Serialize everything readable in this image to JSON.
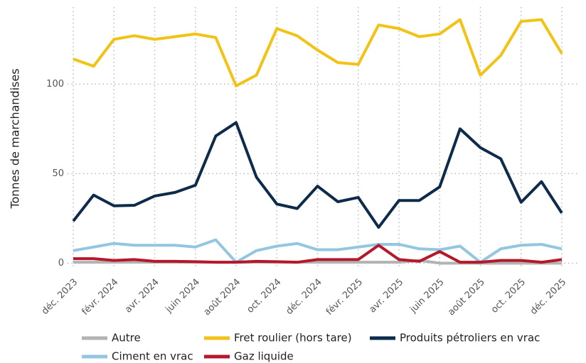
{
  "chart_data": {
    "type": "line",
    "y_label": "Tonnes de marchandises",
    "categories": [
      "déc. 2023",
      null,
      "févr. 2024",
      null,
      "avr. 2024",
      null,
      "juin 2024",
      null,
      "août 2024",
      null,
      "oct. 2024",
      null,
      "déc. 2024",
      null,
      "févr. 2025",
      null,
      "avr. 2025",
      null,
      "juin 2025",
      null,
      "août 2025",
      null,
      "oct. 2025",
      null,
      "déc. 2025"
    ],
    "series": [
      {
        "name": "Autre",
        "color": "#b3b3b3",
        "values": [
          0.5,
          0.5,
          0.5,
          0.5,
          0.5,
          0.5,
          0.5,
          0.5,
          0.5,
          0.5,
          0.5,
          0.5,
          0.5,
          0.5,
          0.5,
          0.5,
          0.5,
          1.5,
          0,
          0,
          0,
          0,
          0,
          0,
          0
        ]
      },
      {
        "name": "Ciment en vrac",
        "color": "#93c6e0",
        "values": [
          7,
          9,
          11,
          10,
          10,
          10,
          9,
          13,
          0.5,
          7,
          9.5,
          11,
          7.5,
          7.5,
          9,
          10.5,
          10.5,
          8,
          7.5,
          9.5,
          0.5,
          8,
          10,
          10.5,
          8
        ]
      },
      {
        "name": "Fret roulier (hors tare)",
        "color": "#f2c314",
        "values": [
          114,
          110,
          125,
          127,
          125,
          126.5,
          128,
          126,
          99,
          105,
          131,
          127,
          119,
          112,
          111,
          133,
          131,
          126.5,
          128,
          136,
          105,
          116,
          135,
          136,
          117
        ]
      },
      {
        "name": "Gaz liquide",
        "color": "#b5182b",
        "values": [
          2.5,
          2.5,
          1.5,
          2,
          1,
          1,
          0.8,
          0.5,
          0.5,
          1,
          0.8,
          0.5,
          2,
          2,
          2,
          10,
          2,
          1,
          6.5,
          0.5,
          0.5,
          1.5,
          1.5,
          0.5,
          2
        ]
      },
      {
        "name": "Produits pétroliers en vrac",
        "color": "#0d2b4a",
        "values": [
          23.5,
          38,
          32,
          32.3,
          37.5,
          39.5,
          43.5,
          71,
          78.5,
          48,
          33,
          30.5,
          43,
          34.3,
          36.7,
          20,
          35,
          35,
          42.6,
          75,
          64.5,
          58.3,
          34,
          45.5,
          28
        ]
      }
    ],
    "ylim": [
      -3,
      143
    ],
    "yticks": [
      0,
      50,
      100
    ],
    "grid": true
  }
}
